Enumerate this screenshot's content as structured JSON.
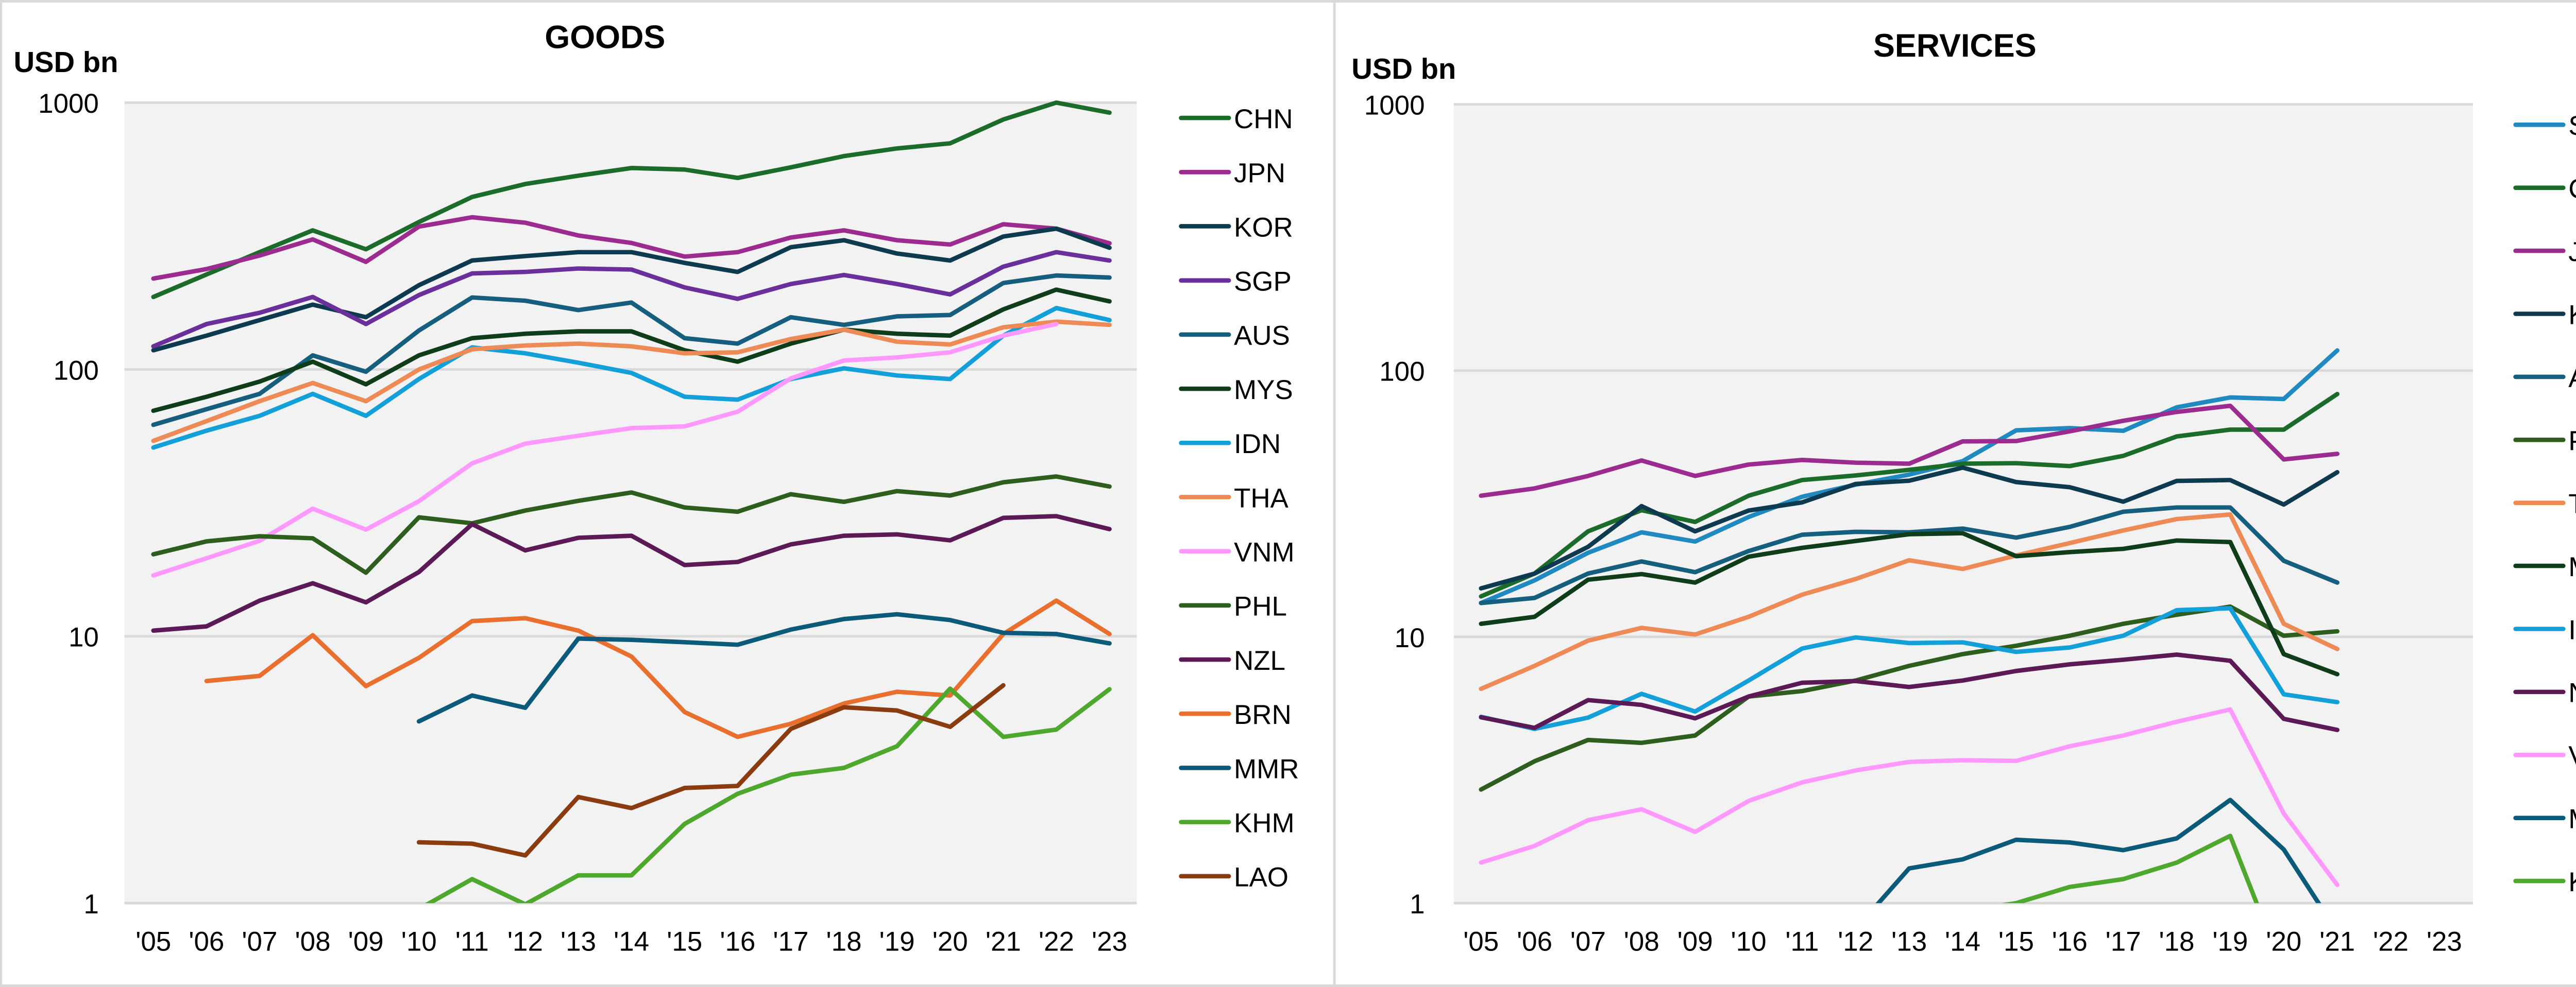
{
  "chart_data": [
    {
      "type": "line",
      "title": "GOODS",
      "ylabel": "USD bn",
      "yscale": "log",
      "ylim": [
        1,
        1000
      ],
      "yticks": [
        "1",
        "10",
        "100",
        "1000"
      ],
      "grid": true,
      "legend": "right",
      "categories": [
        "'05",
        "'06",
        "'07",
        "'08",
        "'09",
        "'10",
        "'11",
        "'12",
        "'13",
        "'14",
        "'15",
        "'16",
        "'17",
        "'18",
        "'19",
        "'20",
        "'21",
        "'22",
        "'23"
      ],
      "series": [
        {
          "name": "CHN",
          "color": "#1b6b2a",
          "values": [
            187,
            227,
            275,
            332,
            282,
            357,
            443,
            495,
            532,
            569,
            561,
            522,
            572,
            630,
            673,
            704,
            865,
            1000,
            917
          ]
        },
        {
          "name": "JPN",
          "color": "#9b2b8f",
          "values": [
            219,
            238,
            267,
            307,
            253,
            343,
            372,
            355,
            318,
            298,
            265,
            275,
            312,
            332,
            305,
            294,
            350,
            337,
            297
          ]
        },
        {
          "name": "KOR",
          "color": "#0d3a4f",
          "values": [
            118,
            134,
            153,
            175,
            157,
            207,
            256,
            266,
            275,
            275,
            251,
            232,
            287,
            305,
            272,
            256,
            315,
            337,
            286
          ]
        },
        {
          "name": "SGP",
          "color": "#6a2f9a",
          "values": [
            122,
            148,
            163,
            187,
            148,
            190,
            229,
            232,
            239,
            237,
            203,
            184,
            209,
            226,
            209,
            191,
            243,
            275,
            256
          ]
        },
        {
          "name": "AUS",
          "color": "#155e7e",
          "values": [
            62,
            71,
            81,
            113,
            98,
            140,
            186,
            181,
            167,
            178,
            131,
            125,
            157,
            147,
            158,
            160,
            211,
            225,
            221
          ]
        },
        {
          "name": "MYS",
          "color": "#0f3d1a",
          "values": [
            70,
            79,
            90,
            107,
            88,
            113,
            131,
            136,
            139,
            139,
            118,
            107,
            125,
            141,
            136,
            134,
            168,
            199,
            180
          ]
        },
        {
          "name": "IDN",
          "color": "#139fd8",
          "values": [
            51,
            59,
            67,
            81,
            67,
            92,
            121,
            115,
            106,
            97,
            79,
            77,
            92,
            101,
            95,
            92,
            134,
            170,
            153
          ]
        },
        {
          "name": "THA",
          "color": "#ee8a55",
          "values": [
            54,
            64,
            76,
            89,
            76,
            100,
            119,
            123,
            125,
            122,
            115,
            116,
            130,
            141,
            127,
            124,
            144,
            151,
            147
          ]
        },
        {
          "name": "VNM",
          "color": "#ff99ff",
          "values": [
            16.9,
            19.6,
            22.8,
            30.1,
            25.1,
            32.1,
            44.5,
            52.7,
            56.4,
            60.3,
            61.2,
            69.4,
            92.6,
            108,
            111,
            116,
            134,
            148,
            null
          ]
        },
        {
          "name": "PHL",
          "color": "#2d5e1e",
          "values": [
            20.3,
            22.7,
            23.7,
            23.3,
            17.3,
            27.9,
            26.5,
            29.6,
            32.2,
            34.6,
            30.4,
            29.3,
            34.1,
            31.9,
            35.0,
            33.7,
            37.8,
            39.7,
            36.4
          ]
        },
        {
          "name": "NZL",
          "color": "#5b1a55",
          "values": [
            10.5,
            10.9,
            13.6,
            15.8,
            13.4,
            17.4,
            26.3,
            21.0,
            23.4,
            23.8,
            18.5,
            19.0,
            22.1,
            23.8,
            24.1,
            22.9,
            27.8,
            28.2,
            25.2
          ]
        },
        {
          "name": "BRN",
          "color": "#e86f2e",
          "values": [
            null,
            6.8,
            7.1,
            10.1,
            6.5,
            8.3,
            11.4,
            11.7,
            10.5,
            8.4,
            5.2,
            4.2,
            4.7,
            5.6,
            6.2,
            6.0,
            10.2,
            13.6,
            10.2
          ]
        },
        {
          "name": "MMR",
          "color": "#0b5a7a",
          "values": [
            null,
            null,
            null,
            null,
            null,
            4.8,
            6.0,
            5.4,
            9.8,
            9.7,
            9.5,
            9.3,
            10.6,
            11.6,
            12.1,
            11.5,
            10.3,
            10.2,
            9.4
          ]
        },
        {
          "name": "KHM",
          "color": "#4ea82e",
          "values": [
            null,
            null,
            null,
            null,
            null,
            0.95,
            1.23,
            0.99,
            1.27,
            1.27,
            1.98,
            2.57,
            3.03,
            3.21,
            3.87,
            6.36,
            4.2,
            4.47,
            6.33
          ]
        },
        {
          "name": "LAO",
          "color": "#8b3b10",
          "values": [
            null,
            null,
            null,
            null,
            null,
            1.69,
            1.67,
            1.51,
            2.5,
            2.27,
            2.7,
            2.75,
            4.5,
            5.42,
            5.27,
            4.58,
            6.55,
            null,
            null
          ]
        }
      ]
    },
    {
      "type": "line",
      "title": "SERVICES",
      "ylabel": "USD bn",
      "yscale": "log",
      "ylim": [
        1,
        1000
      ],
      "yticks": [
        "1",
        "10",
        "100",
        "1000"
      ],
      "grid": true,
      "legend": "right",
      "categories": [
        "'05",
        "'06",
        "'07",
        "'08",
        "'09",
        "'10",
        "'11",
        "'12",
        "'13",
        "'14",
        "'15",
        "'16",
        "'17",
        "'18",
        "'19",
        "'20",
        "'21",
        "'22",
        "'23"
      ],
      "series": [
        {
          "name": "SGP",
          "color": "#2089c0",
          "values": [
            13.4,
            16.3,
            20.7,
            24.7,
            22.8,
            28.2,
            33.6,
            37.3,
            40.7,
            45.7,
            59.7,
            60.8,
            59.4,
            72.8,
            79.3,
            78.2,
            119,
            null,
            null
          ]
        },
        {
          "name": "CHN",
          "color": "#1b6b2a",
          "values": [
            14.2,
            17.3,
            24.9,
            29.9,
            27.0,
            33.9,
            38.8,
            40.4,
            42.4,
            44.7,
            44.9,
            43.8,
            47.8,
            56.6,
            60.0,
            60.0,
            81.7,
            null,
            null
          ]
        },
        {
          "name": "JPN",
          "color": "#9b2b8f",
          "values": [
            33.9,
            36.1,
            40.2,
            46.0,
            40.2,
            44.4,
            46.2,
            45.1,
            44.7,
            54.2,
            54.4,
            59.1,
            64.8,
            69.9,
            73.8,
            46.4,
            48.7,
            null,
            null
          ]
        },
        {
          "name": "KOR",
          "color": "#0d3a4f",
          "values": [
            15.2,
            17.3,
            21.8,
            31.0,
            24.9,
            29.8,
            32.0,
            37.5,
            38.6,
            43.2,
            38.1,
            36.5,
            32.2,
            38.5,
            38.8,
            31.4,
            41.5,
            null,
            null
          ]
        },
        {
          "name": "AUS",
          "color": "#155e7e",
          "values": [
            13.4,
            14.0,
            17.3,
            19.2,
            17.5,
            21.0,
            24.2,
            24.8,
            24.7,
            25.5,
            23.6,
            25.9,
            29.5,
            30.6,
            30.6,
            19.3,
            16.0,
            null,
            null
          ]
        },
        {
          "name": "PHL",
          "color": "#2d5e1e",
          "values": [
            2.67,
            3.41,
            4.1,
            4.0,
            4.26,
            5.97,
            6.26,
            6.86,
            7.78,
            8.61,
            9.26,
            10.1,
            11.2,
            12.1,
            13.0,
            10.1,
            10.5,
            null,
            null
          ]
        },
        {
          "name": "THA",
          "color": "#ee8a55",
          "values": [
            6.38,
            7.78,
            9.68,
            10.8,
            10.2,
            11.9,
            14.4,
            16.5,
            19.4,
            18.0,
            20.2,
            22.5,
            25.1,
            27.7,
            28.8,
            11.2,
            9.0,
            null,
            null
          ]
        },
        {
          "name": "MYS",
          "color": "#0f3d1a",
          "values": [
            11.2,
            11.9,
            16.4,
            17.2,
            16.0,
            20.0,
            21.6,
            22.9,
            24.3,
            24.5,
            20.1,
            20.8,
            21.4,
            23.0,
            22.7,
            8.61,
            7.24,
            null,
            null
          ]
        },
        {
          "name": "IDN",
          "color": "#139fd8",
          "values": [
            5.01,
            4.51,
            4.97,
            6.11,
            5.24,
            6.86,
            9.04,
            9.95,
            9.48,
            9.53,
            8.78,
            9.12,
            10.1,
            12.6,
            12.8,
            6.08,
            5.69,
            null,
            null
          ]
        },
        {
          "name": "NZL",
          "color": "#5b1a55",
          "values": [
            4.99,
            4.55,
            5.79,
            5.55,
            4.94,
            5.97,
            6.73,
            6.83,
            6.48,
            6.86,
            7.45,
            7.89,
            8.2,
            8.57,
            8.13,
            4.92,
            4.47,
            null,
            null
          ]
        },
        {
          "name": "VNM",
          "color": "#ff99ff",
          "values": [
            1.42,
            1.64,
            2.05,
            2.25,
            1.85,
            2.42,
            2.84,
            3.15,
            3.39,
            3.44,
            3.42,
            3.88,
            4.26,
            4.8,
            5.34,
            2.17,
            1.17,
            null,
            null
          ]
        },
        {
          "name": "MMR",
          "color": "#0b5a7a",
          "values": [
            null,
            null,
            null,
            null,
            null,
            null,
            null,
            0.8,
            1.35,
            1.46,
            1.73,
            1.69,
            1.58,
            1.75,
            2.44,
            1.59,
            0.78,
            null,
            null
          ]
        },
        {
          "name": "KHM",
          "color": "#4ea82e",
          "values": [
            null,
            null,
            null,
            null,
            null,
            null,
            null,
            null,
            null,
            0.93,
            1.0,
            1.15,
            1.23,
            1.42,
            1.79,
            0.55,
            null,
            null,
            null
          ]
        }
      ]
    }
  ]
}
